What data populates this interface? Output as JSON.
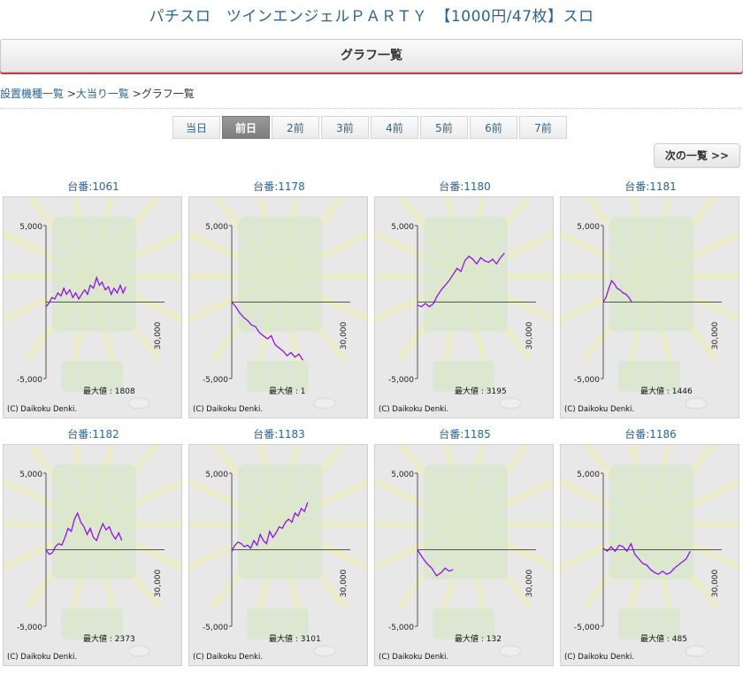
{
  "page": {
    "title": "パチスロ　ツインエンジェルＰＡＲＴＹ　【1000円/47枚】スロ",
    "section_title": "グラフ一覧"
  },
  "breadcrumb": {
    "items": [
      "設置機種一覧",
      "大当り一覧",
      "グラフ一覧"
    ],
    "sep": " >"
  },
  "tabs": [
    {
      "label": "当日",
      "active": false
    },
    {
      "label": "前日",
      "active": true
    },
    {
      "label": "2前",
      "active": false
    },
    {
      "label": "3前",
      "active": false
    },
    {
      "label": "4前",
      "active": false
    },
    {
      "label": "5前",
      "active": false
    },
    {
      "label": "6前",
      "active": false
    },
    {
      "label": "7前",
      "active": false
    }
  ],
  "next_button": {
    "label": "次の一覧 >>"
  },
  "graph_common": {
    "y_top_label": "5,000",
    "y_bottom_label": "-5,000",
    "x_label": "30,000",
    "copyright": "(C) Daikoku Denki.",
    "max_prefix": "最大値 : ",
    "ylim": [
      -5000,
      5000
    ],
    "xlim": [
      0,
      30000
    ],
    "line_color": "#8b00ff",
    "unit_prefix": "台番:"
  },
  "machines": [
    {
      "number": "1061",
      "max_value": "1808",
      "series": [
        [
          0,
          -300
        ],
        [
          700,
          -100
        ],
        [
          1500,
          300
        ],
        [
          2200,
          200
        ],
        [
          3000,
          600
        ],
        [
          3800,
          400
        ],
        [
          4500,
          900
        ],
        [
          5200,
          500
        ],
        [
          6000,
          800
        ],
        [
          6800,
          300
        ],
        [
          7500,
          600
        ],
        [
          8300,
          200
        ],
        [
          9000,
          500
        ],
        [
          9800,
          800
        ],
        [
          10500,
          500
        ],
        [
          11200,
          1100
        ],
        [
          12000,
          900
        ],
        [
          12800,
          1600
        ],
        [
          13500,
          1100
        ],
        [
          14200,
          1300
        ],
        [
          15000,
          800
        ],
        [
          15800,
          1000
        ],
        [
          16500,
          500
        ],
        [
          17200,
          900
        ],
        [
          18000,
          600
        ],
        [
          18800,
          1100
        ],
        [
          19500,
          600
        ],
        [
          20200,
          1000
        ]
      ]
    },
    {
      "number": "1178",
      "max_value": "1",
      "series": [
        [
          0,
          0
        ],
        [
          1000,
          -300
        ],
        [
          2000,
          -700
        ],
        [
          3000,
          -1000
        ],
        [
          4000,
          -1200
        ],
        [
          5000,
          -1500
        ],
        [
          6000,
          -1600
        ],
        [
          7000,
          -2000
        ],
        [
          8000,
          -2200
        ],
        [
          9000,
          -2400
        ],
        [
          10000,
          -2200
        ],
        [
          11000,
          -2800
        ],
        [
          12000,
          -3000
        ],
        [
          13000,
          -3200
        ],
        [
          14000,
          -3500
        ],
        [
          15000,
          -3300
        ],
        [
          16000,
          -3600
        ],
        [
          17000,
          -3400
        ],
        [
          18000,
          -3800
        ]
      ]
    },
    {
      "number": "1180",
      "max_value": "3195",
      "series": [
        [
          0,
          -200
        ],
        [
          1000,
          -300
        ],
        [
          2000,
          -100
        ],
        [
          3000,
          -300
        ],
        [
          4000,
          -100
        ],
        [
          5000,
          400
        ],
        [
          6000,
          800
        ],
        [
          7000,
          1100
        ],
        [
          8000,
          1400
        ],
        [
          9000,
          1800
        ],
        [
          10000,
          2200
        ],
        [
          11000,
          2000
        ],
        [
          12000,
          2700
        ],
        [
          13000,
          3000
        ],
        [
          14000,
          2800
        ],
        [
          15000,
          2500
        ],
        [
          16000,
          2900
        ],
        [
          17000,
          2700
        ],
        [
          18000,
          2600
        ],
        [
          19000,
          2800
        ],
        [
          20000,
          2500
        ],
        [
          21000,
          2900
        ],
        [
          22000,
          3200
        ]
      ]
    },
    {
      "number": "1181",
      "max_value": "1446",
      "series": [
        [
          0,
          0
        ],
        [
          700,
          300
        ],
        [
          1400,
          900
        ],
        [
          2100,
          1400
        ],
        [
          2800,
          1200
        ],
        [
          3500,
          900
        ],
        [
          4200,
          800
        ],
        [
          5000,
          600
        ],
        [
          5800,
          500
        ],
        [
          6500,
          300
        ],
        [
          7200,
          0
        ]
      ]
    },
    {
      "number": "1182",
      "max_value": "2373",
      "series": [
        [
          0,
          0
        ],
        [
          800,
          -300
        ],
        [
          1600,
          -200
        ],
        [
          2400,
          200
        ],
        [
          3200,
          400
        ],
        [
          4000,
          300
        ],
        [
          4800,
          800
        ],
        [
          5600,
          1400
        ],
        [
          6400,
          1200
        ],
        [
          7200,
          2000
        ],
        [
          8000,
          2400
        ],
        [
          8800,
          1800
        ],
        [
          9600,
          1500
        ],
        [
          10400,
          1000
        ],
        [
          11200,
          1400
        ],
        [
          12000,
          800
        ],
        [
          12800,
          600
        ],
        [
          13600,
          1200
        ],
        [
          14400,
          1700
        ],
        [
          15200,
          1300
        ],
        [
          16000,
          1500
        ],
        [
          16800,
          1000
        ],
        [
          17600,
          700
        ],
        [
          18400,
          1100
        ],
        [
          19200,
          600
        ]
      ]
    },
    {
      "number": "1183",
      "max_value": "3101",
      "series": [
        [
          0,
          -100
        ],
        [
          800,
          300
        ],
        [
          1600,
          500
        ],
        [
          2400,
          400
        ],
        [
          3200,
          200
        ],
        [
          4000,
          300
        ],
        [
          4800,
          100
        ],
        [
          5600,
          600
        ],
        [
          6400,
          300
        ],
        [
          7200,
          1000
        ],
        [
          8000,
          600
        ],
        [
          8800,
          400
        ],
        [
          9600,
          1200
        ],
        [
          10400,
          800
        ],
        [
          11200,
          1100
        ],
        [
          12000,
          1500
        ],
        [
          12800,
          1400
        ],
        [
          13600,
          1800
        ],
        [
          14400,
          2000
        ],
        [
          15200,
          1800
        ],
        [
          16000,
          2400
        ],
        [
          16800,
          2200
        ],
        [
          17600,
          2700
        ],
        [
          18400,
          2500
        ],
        [
          19200,
          3100
        ]
      ]
    },
    {
      "number": "1185",
      "max_value": "132",
      "series": [
        [
          0,
          0
        ],
        [
          1200,
          -500
        ],
        [
          2400,
          -900
        ],
        [
          3600,
          -1200
        ],
        [
          4800,
          -1700
        ],
        [
          6000,
          -1500
        ],
        [
          7000,
          -1200
        ],
        [
          8000,
          -1400
        ],
        [
          9000,
          -1300
        ]
      ]
    },
    {
      "number": "1186",
      "max_value": "485",
      "series": [
        [
          0,
          100
        ],
        [
          1000,
          -100
        ],
        [
          2000,
          200
        ],
        [
          3000,
          -100
        ],
        [
          4000,
          300
        ],
        [
          5000,
          200
        ],
        [
          6000,
          -100
        ],
        [
          7000,
          400
        ],
        [
          8000,
          -300
        ],
        [
          9000,
          -600
        ],
        [
          10000,
          -900
        ],
        [
          11000,
          -1000
        ],
        [
          12000,
          -1300
        ],
        [
          13000,
          -1500
        ],
        [
          14000,
          -1600
        ],
        [
          15000,
          -1400
        ],
        [
          16000,
          -1600
        ],
        [
          17000,
          -1500
        ],
        [
          18000,
          -1200
        ],
        [
          19000,
          -1000
        ],
        [
          20000,
          -800
        ],
        [
          21000,
          -600
        ],
        [
          22000,
          -100
        ]
      ]
    }
  ]
}
